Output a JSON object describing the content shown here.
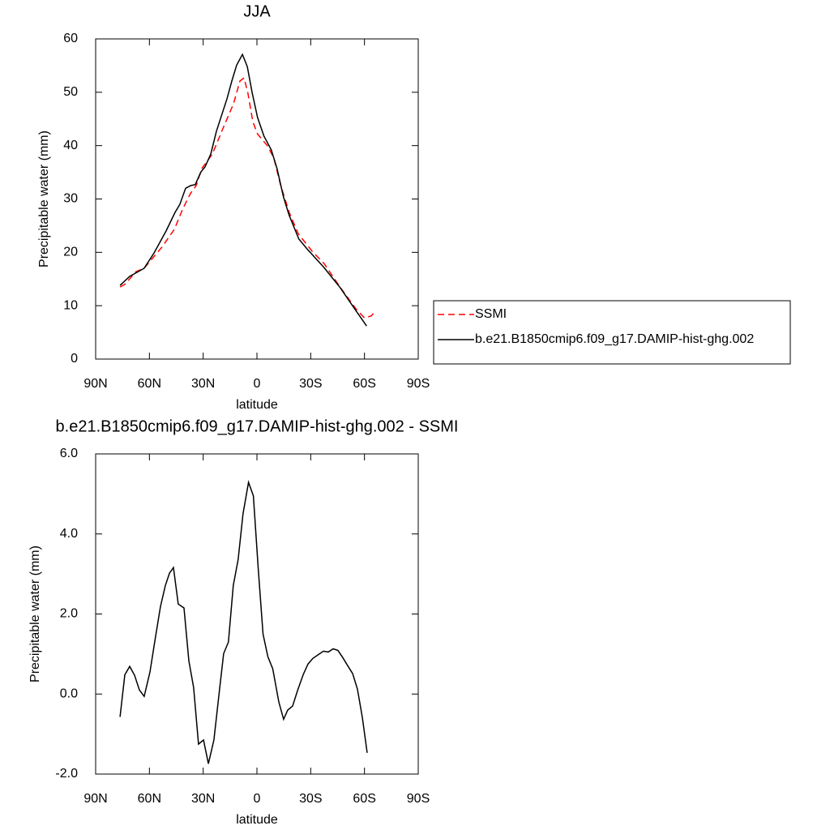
{
  "chart_data": [
    {
      "type": "line",
      "title": "JJA",
      "xlabel": "latitude",
      "ylabel": "Precipitable water (mm)",
      "xlim": [
        90,
        -90
      ],
      "xticks": [
        {
          "value": 90,
          "label": "90N"
        },
        {
          "value": 60,
          "label": "60N"
        },
        {
          "value": 30,
          "label": "30N"
        },
        0,
        {
          "value": -30,
          "label": "30S"
        },
        {
          "value": -60,
          "label": "60S"
        },
        {
          "value": -90,
          "label": "90S"
        }
      ],
      "ylim": [
        0,
        60
      ],
      "yticks": [
        0,
        10,
        20,
        30,
        40,
        50,
        60
      ],
      "legend": "outside-right",
      "series": [
        {
          "name": "SSMI",
          "color": "#ff0000",
          "line_style": "dashed",
          "x": [
            76.4,
            73.7,
            67.4,
            63,
            53,
            46.1,
            41.2,
            37,
            33.9,
            30.8,
            24.9,
            18.5,
            13.1,
            9.5,
            7.2,
            5.0,
            2.3,
            -0.3,
            -5.8,
            -9.4,
            -13.1,
            -18,
            -23,
            -30.8,
            -37.5,
            -46.6,
            -55.5,
            -60,
            -63.8,
            -65.6
          ],
          "values": [
            13.5,
            14.0,
            16.4,
            17,
            21,
            24.3,
            28.3,
            31.1,
            32.5,
            35.7,
            38.4,
            43.6,
            47.8,
            52.1,
            52.7,
            49.8,
            44.5,
            42.2,
            40,
            37.7,
            32.7,
            27.5,
            23.5,
            20.2,
            17.9,
            13.4,
            9.3,
            7.7,
            8.1,
            8.8
          ]
        },
        {
          "name": "b.e21.B1850cmip6.f09_g17.DAMIP-hist-ghg.002",
          "color": "#000000",
          "line_style": "solid",
          "x": [
            76.4,
            71,
            63,
            57.4,
            50.7,
            45.7,
            43,
            39.8,
            37,
            34.4,
            31.2,
            29,
            25.8,
            22.6,
            16.7,
            14,
            11.3,
            8.1,
            5.4,
            2.7,
            -0.3,
            -3.9,
            -8,
            -11.2,
            -14.8,
            -17.9,
            -23.4,
            -28.3,
            -37.3,
            -46.4,
            -55.4,
            -61.2
          ],
          "values": [
            13.8,
            15.5,
            17.0,
            19.9,
            24,
            27.5,
            29,
            32,
            32.5,
            32.7,
            35.1,
            36,
            38.4,
            42.7,
            48.8,
            52.1,
            55.1,
            57.1,
            54.8,
            50,
            45.3,
            41.8,
            39.2,
            35.7,
            30.4,
            27,
            22.5,
            20.5,
            17.2,
            13.4,
            9.0,
            6.2
          ]
        }
      ]
    },
    {
      "type": "line",
      "title": "b.e21.B1850cmip6.f09_g17.DAMIP-hist-ghg.002 - SSMI",
      "xlabel": "latitude",
      "ylabel": "Precipitable water (mm)",
      "xlim": [
        90,
        -90
      ],
      "xticks": [
        {
          "value": 90,
          "label": "90N"
        },
        {
          "value": 60,
          "label": "60N"
        },
        {
          "value": 30,
          "label": "30N"
        },
        0,
        {
          "value": -30,
          "label": "30S"
        },
        {
          "value": -60,
          "label": "60S"
        },
        {
          "value": -90,
          "label": "90S"
        }
      ],
      "ylim": [
        -2,
        6
      ],
      "yticks": [
        {
          "value": -2,
          "label": "-2.0"
        },
        {
          "value": 0,
          "label": "0.0"
        },
        {
          "value": 2,
          "label": "2.0"
        },
        {
          "value": 4,
          "label": "4.0"
        },
        {
          "value": 6,
          "label": "6.0"
        }
      ],
      "color": "#000000",
      "x": [
        76.4,
        73.7,
        71,
        68.3,
        65.6,
        62.9,
        59.7,
        57,
        53.8,
        51.1,
        48.8,
        46.6,
        43.9,
        40.7,
        38,
        35.3,
        32.6,
        29.8,
        27.1,
        24,
        21.3,
        18.6,
        15.9,
        13.2,
        10.5,
        7.8,
        4.7,
        2,
        -0.7,
        -3.4,
        -6.1,
        -8.8,
        -12.2,
        -14.9,
        -17.2,
        -19.9,
        -22.6,
        -25.8,
        -28.5,
        -31.2,
        -34.4,
        -37.1,
        -39.8,
        -42.5,
        -45.2,
        -47.9,
        -50.6,
        -53.4,
        -56.1,
        -58.8,
        -61.5
      ],
      "values": [
        -0.57,
        0.48,
        0.69,
        0.47,
        0.1,
        -0.06,
        0.55,
        1.32,
        2.19,
        2.71,
        3.02,
        3.16,
        2.25,
        2.15,
        0.83,
        0.16,
        -1.25,
        -1.15,
        -1.74,
        -1.15,
        -0.06,
        1.01,
        1.3,
        2.71,
        3.36,
        4.5,
        5.29,
        4.95,
        3.16,
        1.5,
        0.93,
        0.63,
        -0.2,
        -0.63,
        -0.4,
        -0.3,
        0.08,
        0.48,
        0.75,
        0.89,
        0.99,
        1.07,
        1.05,
        1.13,
        1.09,
        0.91,
        0.71,
        0.51,
        0.12,
        -0.58,
        -1.47
      ]
    }
  ]
}
